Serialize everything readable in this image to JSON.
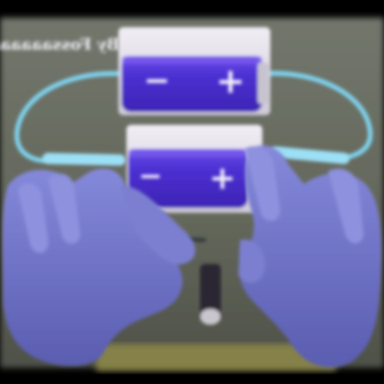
{
  "caption": {
    "text": "By Fossaaaaaa",
    "note_color": "#f2eef7"
  },
  "batteries": [
    {
      "name": "upper",
      "minus": "−",
      "plus": "+"
    },
    {
      "name": "lower",
      "minus": "−",
      "plus": "+"
    }
  ],
  "colors": {
    "backdrop": "#6b6f66",
    "table_edge": "#8f8a4a",
    "holder": "#e4e0ea",
    "battery_body": "#4a2fcf",
    "battery_band": "#6b48e6",
    "wire": "#7fd3ef",
    "glove": "#6f73c8",
    "bulb_base": "#2a2530"
  }
}
